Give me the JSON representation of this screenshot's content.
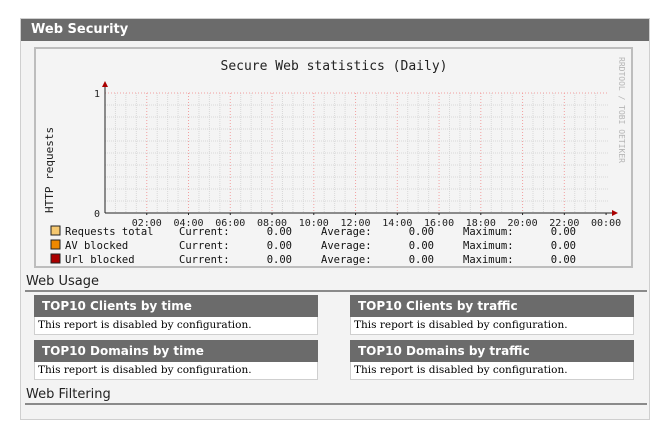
{
  "panel": {
    "title": "Web Security"
  },
  "graph": {
    "title": "Secure Web statistics (Daily)",
    "watermark": "RRDTOOL / TOBI OETIKER",
    "ylabel": "HTTP requests",
    "legend": [
      {
        "name": "Requests total",
        "color": "#f5c870",
        "current_label": "Current:",
        "current": "0.00",
        "average_label": "Average:",
        "average": "0.00",
        "maximum_label": "Maximum:",
        "maximum": "0.00"
      },
      {
        "name": "AV blocked",
        "color": "#ee8800",
        "current_label": "Current:",
        "current": "0.00",
        "average_label": "Average:",
        "average": "0.00",
        "maximum_label": "Maximum:",
        "maximum": "0.00"
      },
      {
        "name": "Url blocked",
        "color": "#aa0000",
        "current_label": "Current:",
        "current": "0.00",
        "average_label": "Average:",
        "average": "0.00",
        "maximum_label": "Maximum:",
        "maximum": "0.00"
      }
    ]
  },
  "chart_data": {
    "type": "area",
    "title": "Secure Web statistics (Daily)",
    "ylabel": "HTTP requests",
    "xlabel": "",
    "categories": [
      "02:00",
      "04:00",
      "06:00",
      "08:00",
      "10:00",
      "12:00",
      "14:00",
      "16:00",
      "18:00",
      "20:00",
      "22:00",
      "00:00"
    ],
    "yticks": [
      "0",
      "1"
    ],
    "ylim": [
      0,
      1
    ],
    "grid": true,
    "series": [
      {
        "name": "Requests total",
        "values": [
          0,
          0,
          0,
          0,
          0,
          0,
          0,
          0,
          0,
          0,
          0,
          0
        ]
      },
      {
        "name": "AV blocked",
        "values": [
          0,
          0,
          0,
          0,
          0,
          0,
          0,
          0,
          0,
          0,
          0,
          0
        ]
      },
      {
        "name": "Url blocked",
        "values": [
          0,
          0,
          0,
          0,
          0,
          0,
          0,
          0,
          0,
          0,
          0,
          0
        ]
      }
    ]
  },
  "usage": {
    "title": "Web Usage",
    "reports": [
      {
        "title": "TOP10 Clients by time",
        "message": "This report is disabled by configuration."
      },
      {
        "title": "TOP10 Clients by traffic",
        "message": "This report is disabled by configuration."
      },
      {
        "title": "TOP10 Domains by time",
        "message": "This report is disabled by configuration."
      },
      {
        "title": "TOP10 Domains by traffic",
        "message": "This report is disabled by configuration."
      }
    ]
  },
  "filtering": {
    "title": "Web Filtering"
  }
}
